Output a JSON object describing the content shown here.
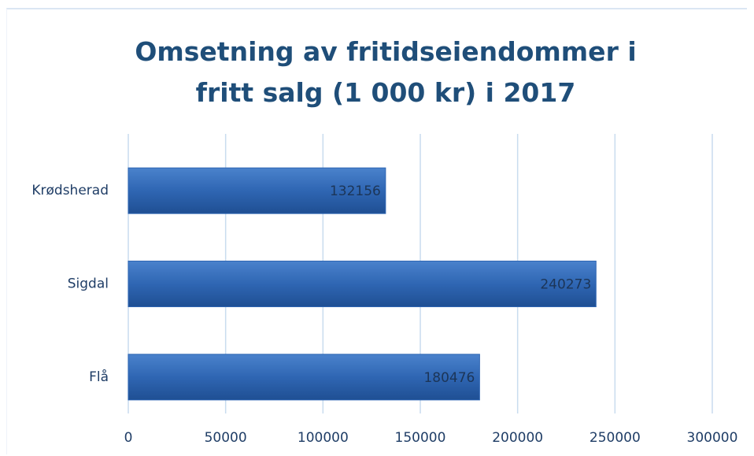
{
  "chart_data": {
    "type": "barh",
    "title": "Omsetning av fritidseiendommer i fritt salg (1 000 kr) i 2017",
    "categories": [
      "Krødsherad",
      "Sigdal",
      "Flå"
    ],
    "values": [
      132156,
      240273,
      180476
    ],
    "color": "#2f66b3",
    "xlim": [
      0,
      300000
    ],
    "xticks": [
      0,
      50000,
      100000,
      150000,
      200000,
      250000,
      300000
    ],
    "grid": true
  }
}
